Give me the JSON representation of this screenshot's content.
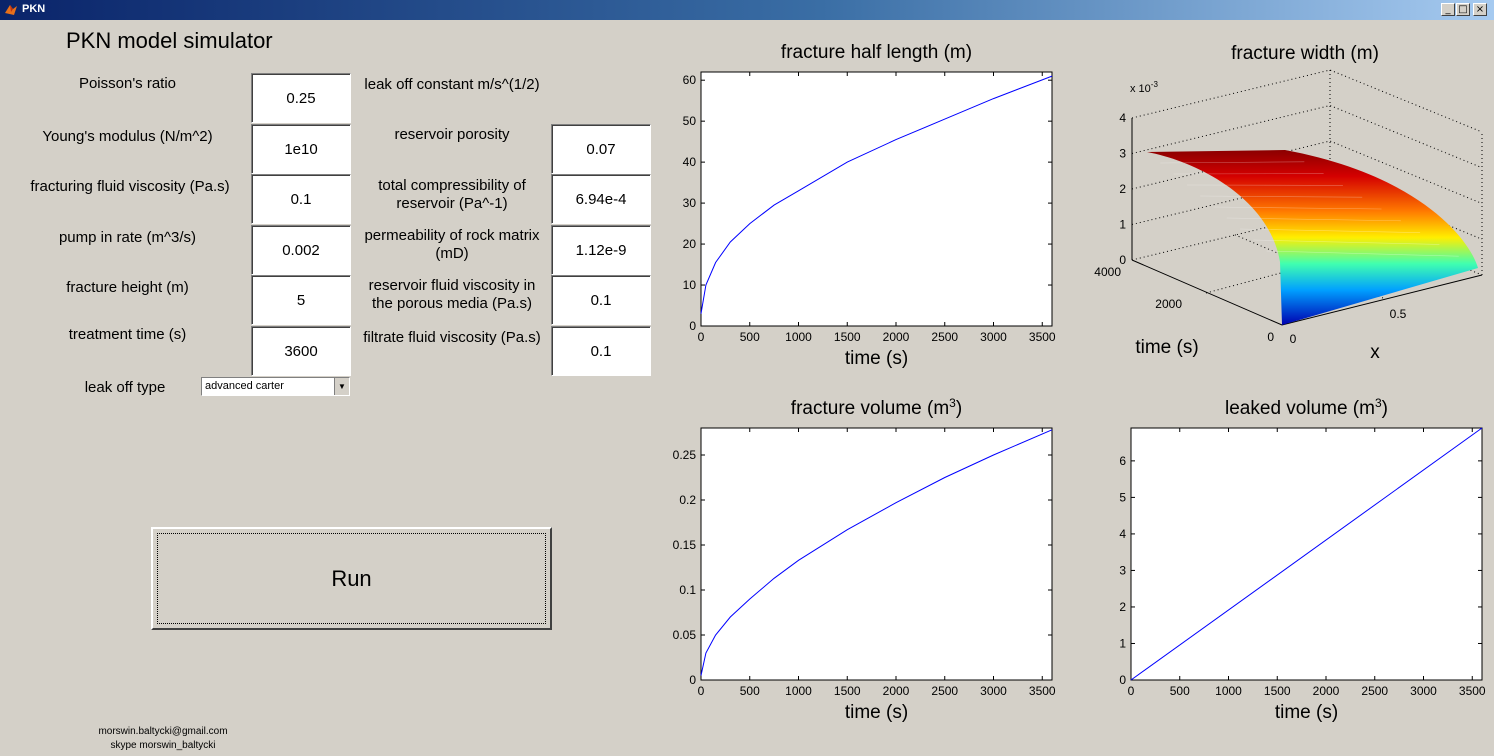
{
  "window": {
    "title": "PKN",
    "buttons": [
      "_",
      "□",
      "×"
    ]
  },
  "app_title": "PKN model simulator",
  "left_params": [
    {
      "label": "Poisson's ratio",
      "value": "0.25"
    },
    {
      "label": "Young's modulus  (N/m^2)",
      "value": "1e10"
    },
    {
      "label": "fracturing fluid viscosity (Pa.s)",
      "value": "0.1"
    },
    {
      "label": "pump in rate (m^3/s)",
      "value": "0.002"
    },
    {
      "label": "fracture height (m)",
      "value": "5"
    },
    {
      "label": "treatment time (s)",
      "value": "3600"
    }
  ],
  "right_params": [
    {
      "label": "leak off constant m/s^(1/2)"
    },
    {
      "label": "reservoir porosity",
      "value": "0.07"
    },
    {
      "label": "total compressibility of",
      "label2": "reservoir (Pa^-1)",
      "value": "6.94e-4"
    },
    {
      "label": "permeability of rock matrix",
      "label2": "(mD)",
      "value": "1.12e-9"
    },
    {
      "label": "reservoir fluid viscosity in",
      "label2": "the porous media (Pa.s)",
      "value": "0.1"
    },
    {
      "label": "filtrate fluid viscosity (Pa.s)",
      "value": "0.1"
    }
  ],
  "leakoff": {
    "label": "leak off type",
    "selected": "advanced carter"
  },
  "run_label": "Run",
  "footer": {
    "email": "morswin.baltycki@gmail.com",
    "skype": "skype morswin_baltycki"
  },
  "colors": {
    "line": "#0000ff",
    "background": "#d4d0c8"
  },
  "chart_data": [
    {
      "type": "line",
      "title": "fracture half length (m)",
      "xlabel": "time (s)",
      "xlim": [
        0,
        3600
      ],
      "ylim": [
        0,
        62
      ],
      "xticks": [
        0,
        500,
        1000,
        1500,
        2000,
        2500,
        3000,
        3500
      ],
      "yticks": [
        0,
        10,
        20,
        30,
        40,
        50,
        60
      ],
      "ytick_labels": [
        "0",
        "10",
        "20",
        "30",
        "40",
        "50",
        "60"
      ],
      "x": [
        0,
        50,
        150,
        300,
        500,
        750,
        1000,
        1500,
        2000,
        2500,
        3000,
        3600
      ],
      "y": [
        3,
        10,
        15.5,
        20.5,
        25,
        29.5,
        33,
        40,
        45.5,
        50.5,
        55.5,
        61
      ]
    },
    {
      "type": "surface",
      "title": "fracture width (m)",
      "xlabel": "x",
      "ylabel": "time (s)",
      "z_multiplier": "x 10",
      "z_exponent": "-3",
      "zticks": [
        "0",
        "1",
        "2",
        "3",
        "4"
      ],
      "time_ticks": [
        "0",
        "2000",
        "4000"
      ],
      "x_ticks": [
        "0",
        "0.5"
      ],
      "z_max": 3.1
    },
    {
      "type": "line",
      "title": "fracture volume (m",
      "title_sup": "3",
      "title_end": ")",
      "xlabel": "time (s)",
      "xlim": [
        0,
        3600
      ],
      "ylim": [
        0,
        0.28
      ],
      "xticks": [
        0,
        500,
        1000,
        1500,
        2000,
        2500,
        3000,
        3500
      ],
      "yticks": [
        0,
        0.05,
        0.1,
        0.15,
        0.2,
        0.25
      ],
      "ytick_labels": [
        "0",
        "0.05",
        "0.1",
        "0.15",
        "0.2",
        "0.25"
      ],
      "x": [
        0,
        50,
        150,
        300,
        500,
        750,
        1000,
        1500,
        2000,
        2500,
        3000,
        3600
      ],
      "y": [
        0.005,
        0.03,
        0.05,
        0.07,
        0.09,
        0.113,
        0.133,
        0.167,
        0.197,
        0.225,
        0.25,
        0.278
      ]
    },
    {
      "type": "line",
      "title": "leaked volume (m",
      "title_sup": "3",
      "title_end": ")",
      "xlabel": "time (s)",
      "xlim": [
        0,
        3600
      ],
      "ylim": [
        0,
        6.9
      ],
      "xticks": [
        0,
        500,
        1000,
        1500,
        2000,
        2500,
        3000,
        3500
      ],
      "yticks": [
        0,
        1,
        2,
        3,
        4,
        5,
        6
      ],
      "ytick_labels": [
        "0",
        "1",
        "2",
        "3",
        "4",
        "5",
        "6"
      ],
      "x": [
        0,
        3600
      ],
      "y": [
        0,
        6.9
      ]
    }
  ]
}
